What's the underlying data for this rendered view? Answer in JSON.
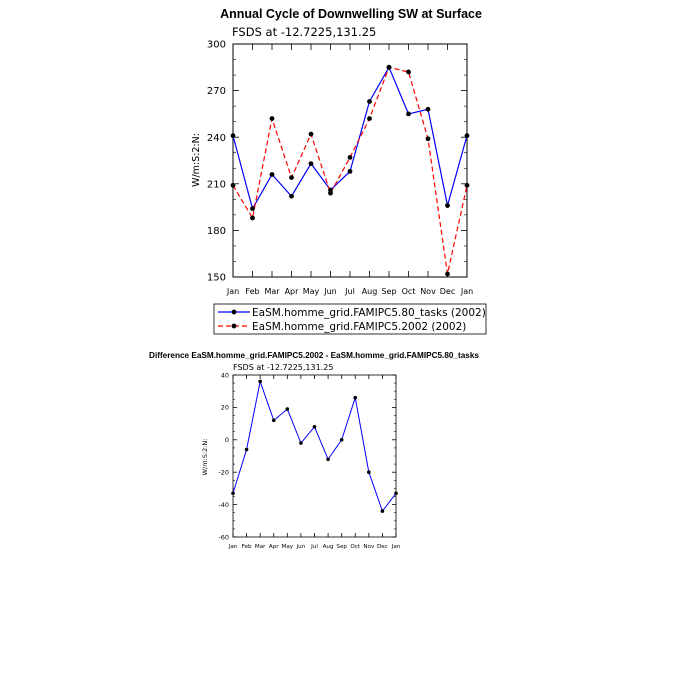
{
  "chart_data": [
    {
      "type": "line",
      "title": "Annual Cycle of Downwelling SW at Surface",
      "subtitle": "FSDS at -12.7225,131.25",
      "ylabel": "W/m:S:2:N:",
      "xlabel": "",
      "categories": [
        "Jan",
        "Feb",
        "Mar",
        "Apr",
        "May",
        "Jun",
        "Jul",
        "Aug",
        "Sep",
        "Oct",
        "Nov",
        "Dec",
        "Jan"
      ],
      "yticks": [
        150,
        180,
        210,
        240,
        270,
        300
      ],
      "ylim": [
        150,
        300
      ],
      "grid": false,
      "legend_position": "bottom",
      "series": [
        {
          "name": "EaSM.homme_grid.FAMIPC5.80_tasks (2002)",
          "color": "#0000ff",
          "line_style": "solid",
          "values": [
            241,
            194,
            216,
            202,
            223,
            206,
            218,
            263,
            285,
            255,
            258,
            196,
            241
          ]
        },
        {
          "name": "EaSM.homme_grid.FAMIPC5.2002 (2002)",
          "color": "#ff0000",
          "line_style": "dashed",
          "values": [
            209,
            188,
            252,
            214,
            242,
            204,
            227,
            252,
            285,
            282,
            239,
            152,
            209
          ]
        }
      ]
    },
    {
      "type": "line",
      "title": "Difference EaSM.homme_grid.FAMIPC5.2002 - EaSM.homme_grid.FAMIPC5.80_tasks",
      "subtitle": "FSDS at -12.7225,131.25",
      "ylabel": "W/m:S:2:N:",
      "xlabel": "",
      "categories": [
        "Jan",
        "Feb",
        "Mar",
        "Apr",
        "May",
        "Jun",
        "Jul",
        "Aug",
        "Sep",
        "Oct",
        "Nov",
        "Dec",
        "Jan"
      ],
      "yticks": [
        -60,
        -40,
        -20,
        0,
        20,
        40
      ],
      "ylim": [
        -60,
        40
      ],
      "grid": false,
      "series": [
        {
          "name": "",
          "color": "#0000ff",
          "line_style": "solid",
          "values": [
            -33,
            -6,
            36,
            12,
            19,
            -2,
            8,
            -12,
            0,
            26,
            -20,
            -44,
            -33
          ]
        }
      ]
    }
  ]
}
